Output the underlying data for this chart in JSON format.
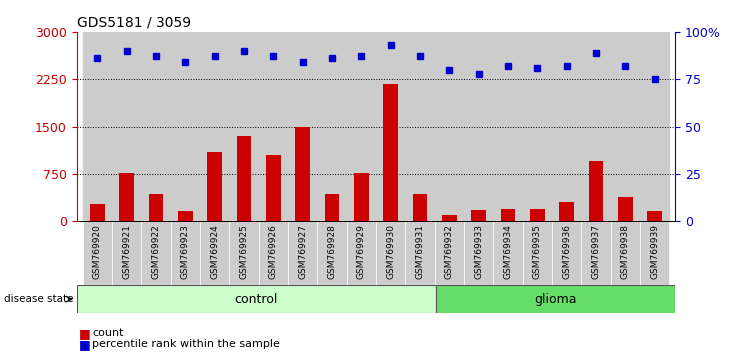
{
  "title": "GDS5181 / 3059",
  "samples": [
    "GSM769920",
    "GSM769921",
    "GSM769922",
    "GSM769923",
    "GSM769924",
    "GSM769925",
    "GSM769926",
    "GSM769927",
    "GSM769928",
    "GSM769929",
    "GSM769930",
    "GSM769931",
    "GSM769932",
    "GSM769933",
    "GSM769934",
    "GSM769935",
    "GSM769936",
    "GSM769937",
    "GSM769938",
    "GSM769939"
  ],
  "counts": [
    270,
    760,
    430,
    155,
    1100,
    1350,
    1050,
    1500,
    430,
    760,
    2180,
    430,
    95,
    185,
    200,
    195,
    300,
    950,
    380,
    155
  ],
  "percentile_ranks": [
    86,
    90,
    87,
    84,
    87,
    90,
    87,
    84,
    86,
    87,
    93,
    87,
    80,
    78,
    82,
    81,
    82,
    89,
    82,
    75
  ],
  "ytick_right_labels": [
    "0",
    "25",
    "50",
    "75",
    "100%"
  ],
  "control_count": 12,
  "glioma_count": 8,
  "ylim_left": [
    0,
    3000
  ],
  "ylim_right": [
    0,
    100
  ],
  "yticks_left": [
    0,
    750,
    1500,
    2250,
    3000
  ],
  "yticks_right": [
    0,
    25,
    50,
    75,
    100
  ],
  "bar_color": "#cc0000",
  "dot_color": "#0000cc",
  "control_color": "#ccffcc",
  "glioma_color": "#66dd66",
  "bg_color": "#cccccc",
  "left_axis_color": "#cc0000",
  "right_axis_color": "#0000cc"
}
